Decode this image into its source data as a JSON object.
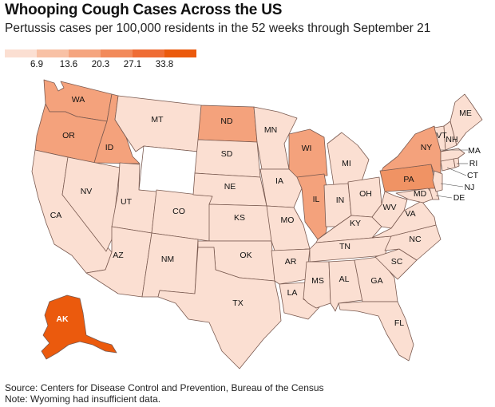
{
  "header": {
    "title": "Whooping Cough Cases Across the US",
    "subtitle": "Pertussis cases per 100,000 residents in the 52 weeks through September 21"
  },
  "legend": {
    "colors": [
      "#fbdfd2",
      "#f8c1a5",
      "#f5a57f",
      "#f28a5a",
      "#ef6d35",
      "#eb5a0d"
    ],
    "labels": [
      "6.9",
      "13.6",
      "20.3",
      "27.1",
      "33.8"
    ]
  },
  "map_colors": {
    "lowest": "#fbdfd2",
    "low": "#f8c9b2",
    "mid": "#f4a27c",
    "high": "#f09364",
    "alaska": "#eb5a0d",
    "no_data": "#ffffff",
    "border": "#7a5a50"
  },
  "states": {
    "WA": "WA",
    "OR": "OR",
    "CA": "CA",
    "ID": "ID",
    "NV": "NV",
    "MT": "MT",
    "WY": "",
    "UT": "UT",
    "AZ": "AZ",
    "CO": "CO",
    "NM": "NM",
    "ND": "ND",
    "SD": "SD",
    "NE": "NE",
    "KS": "KS",
    "OK": "OK",
    "TX": "TX",
    "MN": "MN",
    "IA": "IA",
    "MO": "MO",
    "AR": "AR",
    "LA": "LA",
    "WI": "WI",
    "IL": "IL",
    "MI": "MI",
    "IN": "IN",
    "OH": "OH",
    "KY": "KY",
    "TN": "TN",
    "MS": "MS",
    "AL": "AL",
    "GA": "GA",
    "FL": "FL",
    "SC": "SC",
    "NC": "NC",
    "VA": "VA",
    "WV": "WV",
    "PA": "PA",
    "NY": "NY",
    "MD": "MD",
    "DE": "DE",
    "NJ": "NJ",
    "CT": "CT",
    "RI": "RI",
    "MA": "MA",
    "VT": "VT",
    "NH": "NH",
    "ME": "ME",
    "AK": "AK",
    "HI": ""
  },
  "footer": {
    "source": "Source: Centers for Disease Control and Prevention, Bureau of the Census",
    "note": "Note: Wyoming had insufficient data."
  }
}
